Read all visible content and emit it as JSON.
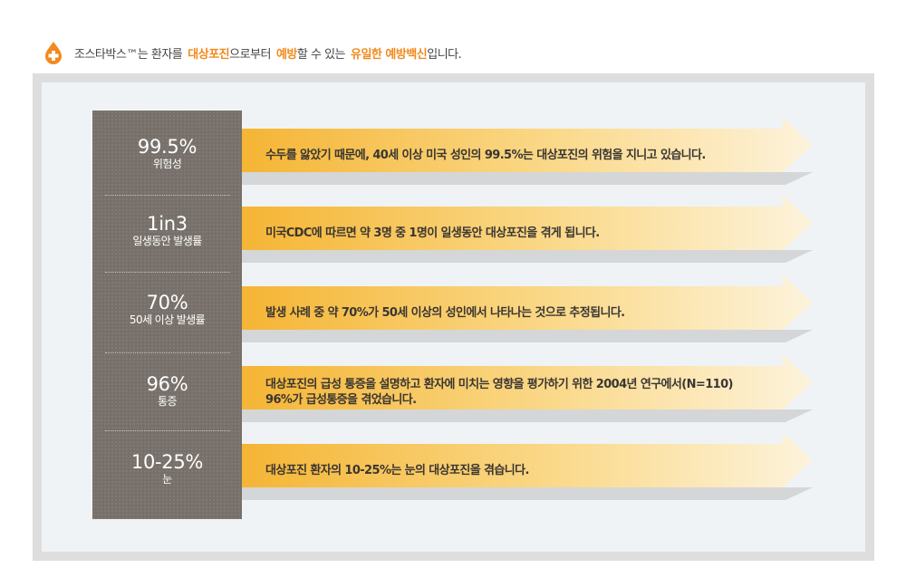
{
  "headline": {
    "part1": "조스타박스™는 환자를",
    "highlight1": "대상포진",
    "part2": "으로부터",
    "highlight2": "예방",
    "part3": "할 수 있는",
    "highlight3": "유일한 예방백신",
    "part4": "입니다.",
    "accent_color": "#f28a1c",
    "icon": "plus-drop-icon"
  },
  "stats": [
    {
      "value": "99.5%",
      "label": "위험성",
      "description": "수두를 앓았기 때문에, 40세 이상 미국 성인의 99.5%는 대상포진의 위험을 지니고 있습니다."
    },
    {
      "value": "1in3",
      "label": "일생동안 발생률",
      "description": "미국CDC에 따르면 약 3명 중 1명이 일생동안 대상포진을 겪게 됩니다."
    },
    {
      "value": "70%",
      "label": "50세 이상 발생률",
      "description": "발생 사례 중 약 70%가 50세 이상의 성인에서 나타나는 것으로 추정됩니다."
    },
    {
      "value": "96%",
      "label": "통증",
      "description": "대상포진의 급성 통증을 설명하고 환자에 미치는 영향을 평가하기 위한 2004년 연구에서(N=110) 96%가 급성통증을 겪었습니다."
    },
    {
      "value": "10-25%",
      "label": "눈",
      "description": "대상포진 환자의 10-25%는 눈의 대상포진을 겪습니다."
    }
  ],
  "colors": {
    "stat_panel": "#77706a",
    "arrow_start": "#f5b534",
    "arrow_end": "#fdf3dc",
    "frame": "#dedede",
    "inner_background": "#eff3f5"
  }
}
